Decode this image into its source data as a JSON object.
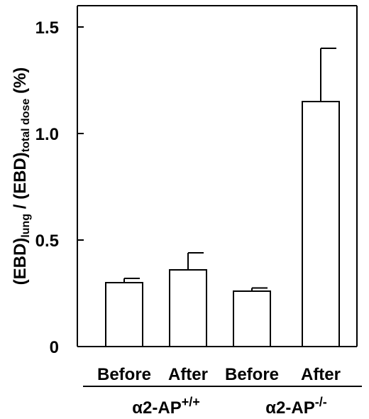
{
  "chart_data": {
    "type": "bar",
    "ylabel": {
      "p1": "(EBD)",
      "s1": "lung",
      "p2": " / (EBD)",
      "s2": "total dose",
      "p3": " (%)"
    },
    "ylim": [
      0,
      1.6
    ],
    "yticks": [
      {
        "value": 0,
        "label": "0"
      },
      {
        "value": 0.5,
        "label": "0.5"
      },
      {
        "value": 1.0,
        "label": "1.0"
      },
      {
        "value": 1.5,
        "label": "1.5"
      }
    ],
    "categories": [
      "Before",
      "After",
      "Before",
      "After"
    ],
    "values": [
      0.3,
      0.36,
      0.26,
      1.15
    ],
    "errors": [
      0.02,
      0.08,
      0.015,
      0.25
    ],
    "groups": [
      {
        "name": "α2-AP",
        "superscript": "+/+",
        "categories": [
          0,
          1
        ]
      },
      {
        "name": "α2-AP",
        "superscript": "-/-",
        "categories": [
          2,
          3
        ]
      }
    ],
    "grid": false,
    "bar_color": "#ffffff",
    "edge_color": "#000000"
  }
}
